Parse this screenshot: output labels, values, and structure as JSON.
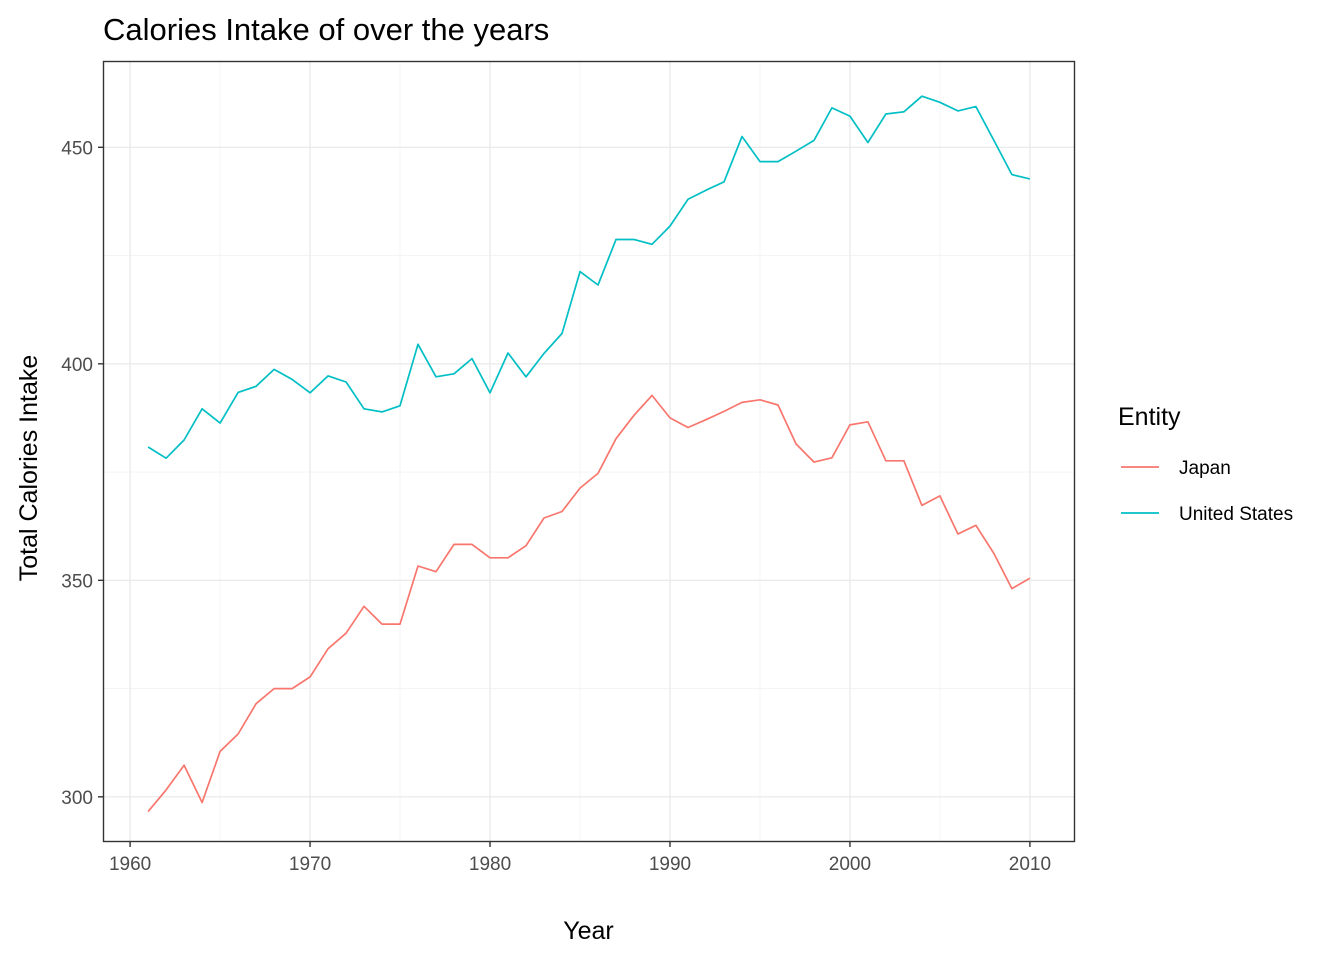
{
  "chart_data": {
    "type": "line",
    "title": "Calories Intake of over the years",
    "xlabel": "Year",
    "ylabel": "Total Calories Intake",
    "xlim": [
      1958.55,
      2012.45
    ],
    "ylim": [
      289.8,
      469.7
    ],
    "x_ticks": [
      "1960",
      "1970",
      "1980",
      "1990",
      "2000",
      "2010"
    ],
    "y_ticks": [
      "300",
      "350",
      "400",
      "450"
    ],
    "grid": true,
    "legend": {
      "title": "Entity",
      "position": "right"
    },
    "x": [
      1961,
      1962,
      1963,
      1964,
      1965,
      1966,
      1967,
      1968,
      1969,
      1970,
      1971,
      1972,
      1973,
      1974,
      1975,
      1976,
      1977,
      1978,
      1979,
      1980,
      1981,
      1982,
      1983,
      1984,
      1985,
      1986,
      1987,
      1988,
      1989,
      1990,
      1991,
      1992,
      1993,
      1994,
      1995,
      1996,
      1997,
      1998,
      1999,
      2000,
      2001,
      2002,
      2003,
      2004,
      2005,
      2006,
      2007,
      2008,
      2009,
      2010
    ],
    "series": [
      {
        "name": "Japan",
        "color": "#F8766D",
        "values": [
          296.6,
          301.6,
          307.3,
          298.7,
          310.5,
          314.5,
          321.5,
          325.0,
          325.0,
          327.7,
          334.2,
          337.8,
          344.0,
          339.9,
          339.9,
          353.3,
          352.0,
          358.3,
          358.3,
          355.2,
          355.2,
          358.0,
          364.4,
          365.9,
          371.3,
          374.7,
          382.7,
          388.1,
          392.7,
          387.5,
          385.3,
          387.1,
          389.0,
          391.1,
          391.7,
          390.5,
          381.5,
          377.3,
          378.3,
          385.9,
          386.6,
          377.6,
          377.6,
          367.3,
          369.5,
          360.7,
          362.7,
          356.2,
          348.1,
          350.5
        ]
      },
      {
        "name": "United States",
        "color": "#00BFC4",
        "values": [
          380.8,
          378.2,
          382.4,
          389.6,
          386.3,
          393.4,
          394.8,
          398.7,
          396.4,
          393.3,
          397.2,
          395.8,
          389.6,
          388.9,
          390.3,
          404.5,
          397.0,
          397.7,
          401.2,
          393.3,
          402.5,
          397.0,
          402.4,
          407.0,
          421.3,
          418.2,
          428.7,
          428.7,
          427.6,
          431.8,
          438.0,
          440.1,
          442.0,
          452.5,
          446.7,
          446.7,
          449.1,
          451.6,
          459.1,
          457.2,
          451.1,
          457.7,
          458.2,
          461.8,
          460.4,
          458.4,
          459.4,
          451.6,
          443.7,
          442.7
        ]
      }
    ]
  }
}
